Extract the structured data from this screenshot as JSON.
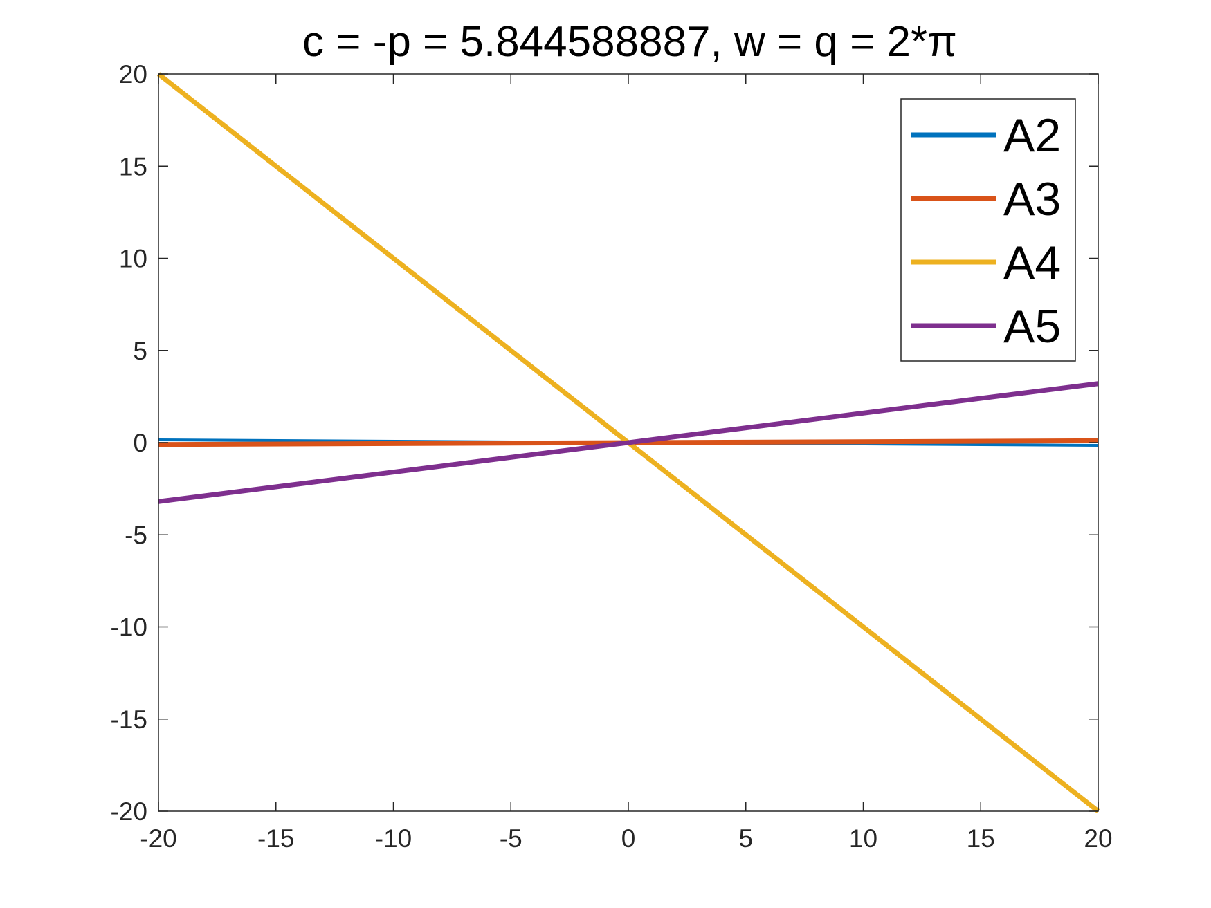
{
  "chart_data": {
    "type": "line",
    "title": "c = -p = 5.844588887, w = q = 2*π",
    "xlabel": "",
    "ylabel": "",
    "xlim": [
      -20,
      20
    ],
    "ylim": [
      -20,
      20
    ],
    "x_ticks": [
      -20,
      -15,
      -10,
      -5,
      0,
      5,
      10,
      15,
      20
    ],
    "y_ticks": [
      -20,
      -15,
      -10,
      -5,
      0,
      5,
      10,
      15,
      20
    ],
    "x_tick_labels": [
      "-20",
      "-15",
      "-10",
      "-5",
      "0",
      "5",
      "10",
      "15",
      "20"
    ],
    "y_tick_labels": [
      "-20",
      "-15",
      "-10",
      "-5",
      "0",
      "5",
      "10",
      "15",
      "20"
    ],
    "grid": false,
    "legend_position": "top-right",
    "series": [
      {
        "name": "A2",
        "color": "#0072BD",
        "x": [
          -20,
          20
        ],
        "y": [
          0.15,
          -0.15
        ]
      },
      {
        "name": "A3",
        "color": "#D95319",
        "x": [
          -20,
          20
        ],
        "y": [
          -0.1,
          0.1
        ]
      },
      {
        "name": "A4",
        "color": "#EDB120",
        "x": [
          -20,
          20
        ],
        "y": [
          20,
          -20
        ]
      },
      {
        "name": "A5",
        "color": "#7E2F8E",
        "x": [
          -20,
          20
        ],
        "y": [
          -3.2,
          3.2
        ]
      }
    ]
  }
}
